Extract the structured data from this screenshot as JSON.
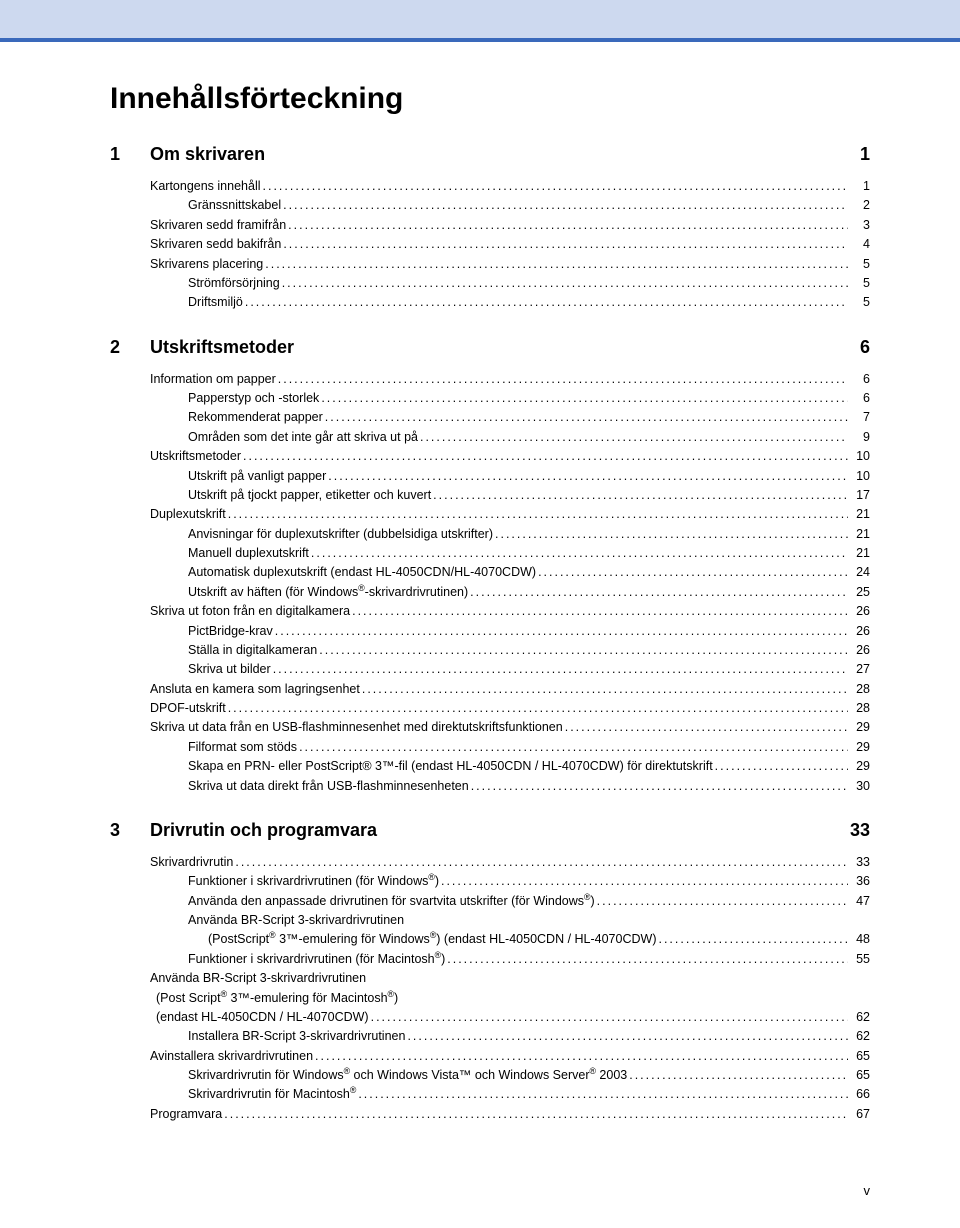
{
  "page_title": "Innehållsförteckning",
  "page_footer": "v",
  "colors": {
    "header_bg": "#cdd9ef",
    "header_border": "#3a69bb",
    "text": "#000000",
    "background": "#ffffff"
  },
  "chapters": [
    {
      "num": "1",
      "title": "Om skrivaren",
      "page": "1",
      "entries": [
        {
          "level": 1,
          "label": "Kartongens innehåll",
          "page": "1"
        },
        {
          "level": 2,
          "label": "Gränssnittskabel",
          "page": "2"
        },
        {
          "level": 1,
          "label": "Skrivaren sedd framifrån",
          "page": "3"
        },
        {
          "level": 1,
          "label": "Skrivaren sedd bakifrån",
          "page": "4"
        },
        {
          "level": 1,
          "label": "Skrivarens placering",
          "page": "5"
        },
        {
          "level": 2,
          "label": "Strömförsörjning",
          "page": "5"
        },
        {
          "level": 2,
          "label": "Driftsmiljö",
          "page": "5"
        }
      ]
    },
    {
      "num": "2",
      "title": "Utskriftsmetoder",
      "page": "6",
      "entries": [
        {
          "level": 1,
          "label": "Information om papper",
          "page": "6"
        },
        {
          "level": 2,
          "label": "Papperstyp och -storlek",
          "page": "6"
        },
        {
          "level": 2,
          "label": "Rekommenderat papper",
          "page": "7"
        },
        {
          "level": 2,
          "label": "Områden som det inte går att skriva ut på",
          "page": "9"
        },
        {
          "level": 1,
          "label": "Utskriftsmetoder",
          "page": "10"
        },
        {
          "level": 2,
          "label": "Utskrift på vanligt papper",
          "page": "10"
        },
        {
          "level": 2,
          "label": "Utskrift på tjockt papper, etiketter och kuvert",
          "page": "17"
        },
        {
          "level": 1,
          "label": "Duplexutskrift",
          "page": "21"
        },
        {
          "level": 2,
          "label": "Anvisningar för duplexutskrifter (dubbelsidiga utskrifter)",
          "page": "21"
        },
        {
          "level": 2,
          "label": "Manuell duplexutskrift",
          "page": "21"
        },
        {
          "level": 2,
          "label": "Automatisk duplexutskrift (endast HL-4050CDN/HL-4070CDW)",
          "page": "24"
        },
        {
          "level": 2,
          "label_html": "Utskrift av häften (för Windows<sup>®</sup>-skrivardrivrutinen)",
          "page": "25"
        },
        {
          "level": 1,
          "label": "Skriva ut foton från en digitalkamera",
          "page": "26"
        },
        {
          "level": 2,
          "label": "PictBridge-krav",
          "page": "26"
        },
        {
          "level": 2,
          "label": "Ställa in digitalkameran",
          "page": "26"
        },
        {
          "level": 2,
          "label": "Skriva ut bilder",
          "page": "27"
        },
        {
          "level": 1,
          "label": "Ansluta en kamera som lagringsenhet",
          "page": "28"
        },
        {
          "level": 1,
          "label": "DPOF-utskrift",
          "page": "28"
        },
        {
          "level": 1,
          "label": "Skriva ut data från en USB-flashminnesenhet med direktutskriftsfunktionen",
          "page": "29"
        },
        {
          "level": 2,
          "label": "Filformat som stöds",
          "page": "29"
        },
        {
          "level": 2,
          "label": "Skapa en PRN- eller PostScript® 3™-fil (endast HL-4050CDN / HL-4070CDW) för direktutskrift",
          "page": "29"
        },
        {
          "level": 2,
          "label": "Skriva ut data direkt från USB-flashminnesenheten",
          "page": "30"
        }
      ]
    },
    {
      "num": "3",
      "title": "Drivrutin och programvara",
      "page": "33",
      "entries": [
        {
          "level": 1,
          "label": "Skrivardrivrutin",
          "page": "33"
        },
        {
          "level": 2,
          "label_html": "Funktioner i skrivardrivrutinen (för Windows<sup>®</sup>)",
          "page": "36"
        },
        {
          "level": 2,
          "label_html": "Använda den anpassade drivrutinen för svartvita utskrifter (för Windows<sup>®</sup>)",
          "page": "47"
        },
        {
          "level": 2,
          "label_html": "Använda BR-Script 3-skrivardrivrutinen",
          "no_page": true
        },
        {
          "level": 3,
          "label_html": "(PostScript<sup>®</sup> 3™-emulering för Windows<sup>®</sup>) (endast HL-4050CDN / HL-4070CDW)",
          "page": "48"
        },
        {
          "level": 2,
          "label_html": "Funktioner i skrivardrivrutinen (för Macintosh<sup>®</sup>)",
          "page": "55"
        },
        {
          "level": 1,
          "label": "Använda BR-Script 3-skrivardrivrutinen",
          "no_page": true
        },
        {
          "level": 1,
          "label_html": "(Post Script<sup>®</sup> 3™-emulering för Macintosh<sup>®</sup>)",
          "no_page": true,
          "extra_indent": 6
        },
        {
          "level": 1,
          "label": "(endast HL-4050CDN / HL-4070CDW)",
          "page": "62",
          "extra_indent": 6
        },
        {
          "level": 2,
          "label": "Installera BR-Script 3-skrivardrivrutinen",
          "page": "62"
        },
        {
          "level": 1,
          "label": "Avinstallera skrivardrivrutinen",
          "page": "65"
        },
        {
          "level": 2,
          "label_html": "Skrivardrivrutin för Windows<sup>®</sup> och Windows Vista™ och Windows Server<sup>®</sup> 2003",
          "page": "65"
        },
        {
          "level": 2,
          "label_html": "Skrivardrivrutin för Macintosh<sup>®</sup>",
          "page": "66"
        },
        {
          "level": 1,
          "label": "Programvara",
          "page": "67"
        }
      ]
    }
  ]
}
